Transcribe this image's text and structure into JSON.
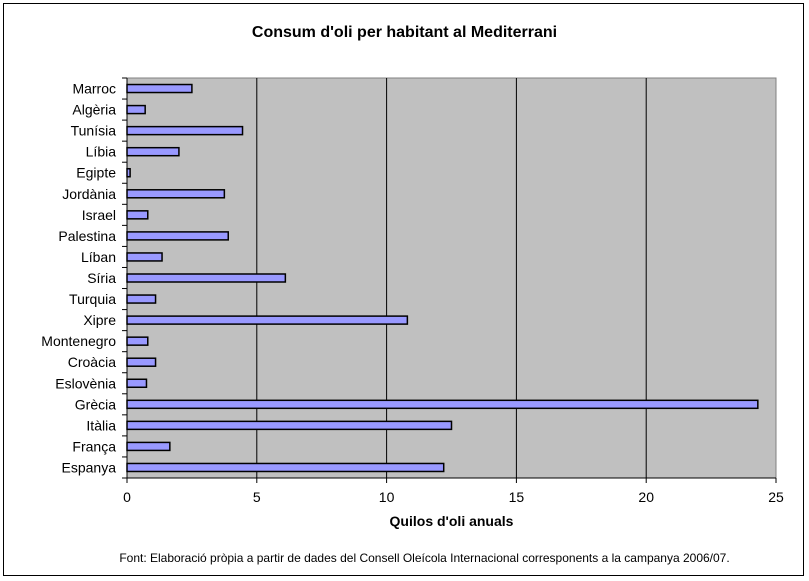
{
  "chart_data": {
    "type": "bar",
    "orientation": "horizontal",
    "title": "Consum d'oli per habitant al Mediterrani",
    "xlabel": "Quilos d'oli anuals",
    "ylabel": "",
    "xlim": [
      0,
      25
    ],
    "xticks": [
      "0",
      "5",
      "10",
      "15",
      "20",
      "25"
    ],
    "categories": [
      "Marroc",
      "Algèria",
      "Tunísia",
      "Líbia",
      "Egipte",
      "Jordània",
      "Israel",
      "Palestina",
      "Líban",
      "Síria",
      "Turquia",
      "Xipre",
      "Montenegro",
      "Croàcia",
      "Eslovènia",
      "Grècia",
      "Itàlia",
      "França",
      "Espanya"
    ],
    "values": [
      2.5,
      0.7,
      4.45,
      2.0,
      0.12,
      3.75,
      0.8,
      3.9,
      1.35,
      6.1,
      1.1,
      10.8,
      0.8,
      1.1,
      0.75,
      24.3,
      12.5,
      1.65,
      12.2
    ],
    "grid": "vertical",
    "legend": "none",
    "colors": {
      "plot_bg": "#c0c0c0",
      "bar_fill": "#9999ff",
      "bar_stroke": "#000000"
    }
  },
  "source_note": "Font: Elaboració pròpia a partir de dades del Consell Oleícola Internacional corresponents a la campanya 2006/07."
}
